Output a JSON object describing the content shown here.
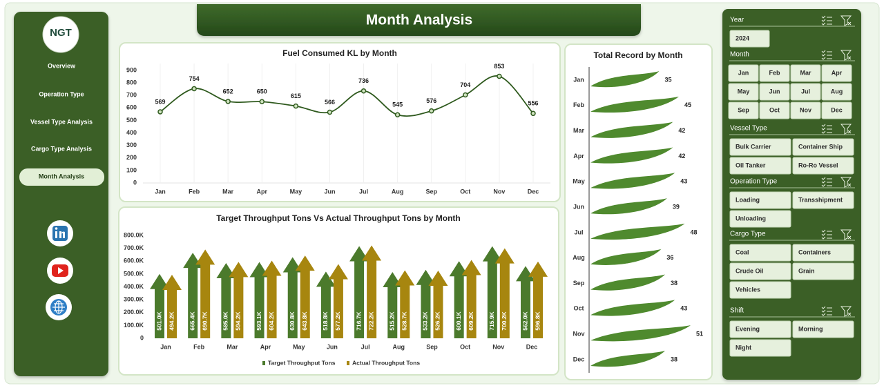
{
  "header": {
    "title": "Month Analysis"
  },
  "sidebar": {
    "logo": "NGT",
    "nav": [
      "Overview",
      "Operation Type",
      "Vessel Type Analysis",
      "Cargo Type Analysis",
      "Month Analysis"
    ],
    "active": 4
  },
  "chart_data": [
    {
      "type": "line",
      "title": "Fuel Consumed KL by Month",
      "categories": [
        "Jan",
        "Feb",
        "Mar",
        "Apr",
        "May",
        "Jun",
        "Jul",
        "Aug",
        "Sep",
        "Oct",
        "Nov",
        "Dec"
      ],
      "values": [
        569,
        754,
        652,
        650,
        615,
        566,
        736,
        545,
        576,
        704,
        853,
        556
      ],
      "color": "#2f5a1e",
      "ylim": [
        0,
        900
      ],
      "yticks": [
        0,
        100,
        200,
        300,
        400,
        500,
        600,
        700,
        800,
        900
      ]
    },
    {
      "type": "arrow-bar",
      "title": "Target Throughput Tons Vs Actual Throughput Tons by Month",
      "categories": [
        "Jan",
        "Feb",
        "Mar",
        "Apr",
        "May",
        "Jun",
        "Jul",
        "Aug",
        "Sep",
        "Oct",
        "Nov",
        "Dec"
      ],
      "series": [
        {
          "name": "Target Throughput Tons",
          "color": "#4b7a2c",
          "values": [
            501000,
            665400,
            585000,
            593100,
            630800,
            518800,
            716700,
            515200,
            533200,
            600100,
            715900,
            562000
          ],
          "value_labels": [
            "501.0K",
            "665.4K",
            "585.0K",
            "593.1K",
            "630.8K",
            "518.8K",
            "716.7K",
            "515.2K",
            "533.2K",
            "600.1K",
            "715.9K",
            "562.0K"
          ]
        },
        {
          "name": "Actual Throughput Tons",
          "color": "#a7860f",
          "values": [
            494200,
            690700,
            594200,
            604200,
            643800,
            577200,
            722200,
            528700,
            526200,
            609200,
            700200,
            596800
          ],
          "value_labels": [
            "494.2K",
            "690.7K",
            "594.2K",
            "604.2K",
            "643.8K",
            "577.2K",
            "722.2K",
            "528.7K",
            "526.2K",
            "609.2K",
            "700.2K",
            "596.8K"
          ]
        }
      ],
      "ylim": [
        0,
        800000
      ],
      "yticks": [
        0,
        {
          "value": 100000,
          "label": "100.0K"
        },
        {
          "value": 200000,
          "label": "200.0K"
        },
        {
          "value": 300000,
          "label": "300.0K"
        },
        {
          "value": 400000,
          "label": "400.0K"
        },
        {
          "value": 500000,
          "label": "500.0K"
        },
        {
          "value": 600000,
          "label": "600.0K"
        },
        {
          "value": 700000,
          "label": "700.0K"
        },
        {
          "value": 800000,
          "label": "800.0K"
        }
      ],
      "legend": "bottom"
    },
    {
      "type": "leaf-bar",
      "title": "Total Record by Month",
      "categories": [
        "Jan",
        "Feb",
        "Mar",
        "Apr",
        "May",
        "Jun",
        "Jul",
        "Aug",
        "Sep",
        "Oct",
        "Nov",
        "Dec"
      ],
      "values": [
        35,
        45,
        42,
        42,
        43,
        39,
        48,
        36,
        38,
        43,
        51,
        38
      ],
      "color": "#4f8a2e"
    }
  ],
  "slicers": [
    {
      "title": "Year",
      "items": [
        "2024"
      ]
    },
    {
      "title": "Month",
      "items": [
        "Jan",
        "Feb",
        "Mar",
        "Apr",
        "May",
        "Jun",
        "Jul",
        "Aug",
        "Sep",
        "Oct",
        "Nov",
        "Dec"
      ]
    },
    {
      "title": "Vessel Type",
      "items": [
        "Bulk Carrier",
        "Container Ship",
        "Oil Tanker",
        "Ro-Ro Vessel"
      ]
    },
    {
      "title": "Operation Type",
      "items": [
        "Loading",
        "Transshipment",
        "Unloading"
      ]
    },
    {
      "title": "Cargo Type",
      "items": [
        "Coal",
        "Containers",
        "Crude Oil",
        "Grain",
        "Vehicles"
      ]
    },
    {
      "title": "Shift",
      "items": [
        "Evening",
        "Morning",
        "Night"
      ]
    }
  ]
}
